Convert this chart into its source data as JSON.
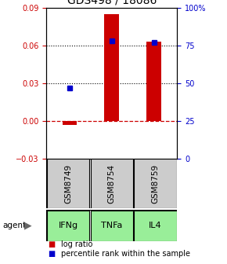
{
  "title": "GDS498 / 18086",
  "samples": [
    "GSM8749",
    "GSM8754",
    "GSM8759"
  ],
  "agents": [
    "IFNg",
    "TNFa",
    "IL4"
  ],
  "log_ratios": [
    -0.003,
    0.085,
    0.063
  ],
  "percentile_ranks": [
    47,
    78,
    77
  ],
  "left_ylim": [
    -0.03,
    0.09
  ],
  "left_yticks": [
    -0.03,
    0.0,
    0.03,
    0.06,
    0.09
  ],
  "right_ylim": [
    0,
    100
  ],
  "right_yticks": [
    0,
    25,
    50,
    75,
    100
  ],
  "right_yticklabels": [
    "0",
    "25",
    "50",
    "75",
    "100%"
  ],
  "bar_color": "#cc0000",
  "point_color": "#0000cc",
  "zero_line_color": "#cc0000",
  "dotted_line_color": "#000000",
  "sample_box_color": "#cccccc",
  "agent_box_color": "#99ee99",
  "bg_color": "#ffffff",
  "bar_width": 0.35
}
